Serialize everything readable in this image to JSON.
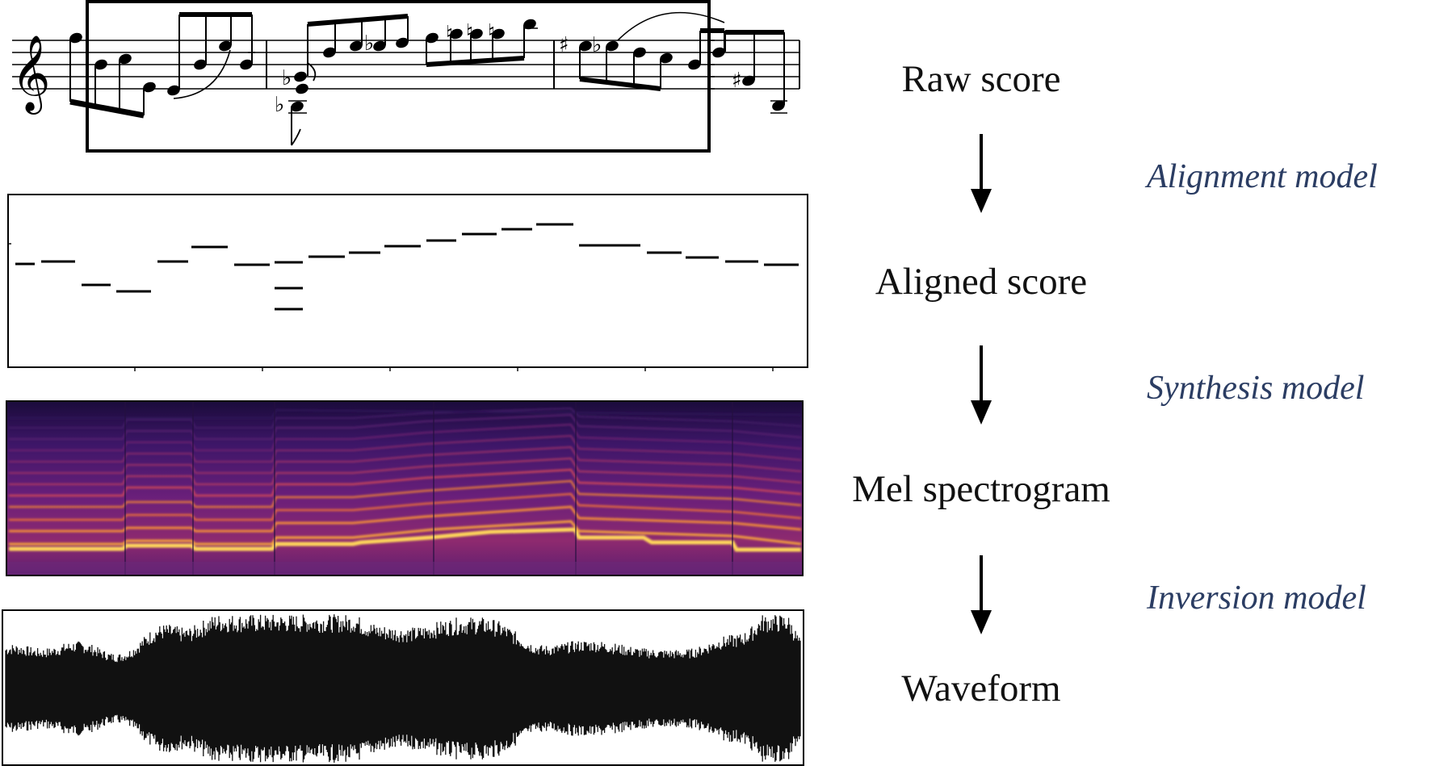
{
  "stages": [
    {
      "label": "Raw score"
    },
    {
      "label": "Aligned score"
    },
    {
      "label": "Mel spectrogram"
    },
    {
      "label": "Waveform"
    }
  ],
  "models": [
    {
      "label": "Alignment model"
    },
    {
      "label": "Synthesis model"
    },
    {
      "label": "Inversion model"
    }
  ],
  "colors": {
    "model_text": "#2b3d63",
    "stage_text": "#111111",
    "ink": "#000000"
  },
  "icons": {
    "clef": "treble-clef-icon",
    "arrow": "arrow-down-icon"
  },
  "score_symbols": {
    "clef_glyph": "𝄞",
    "flat": "♭",
    "sharp": "♯",
    "natural": "♮"
  }
}
